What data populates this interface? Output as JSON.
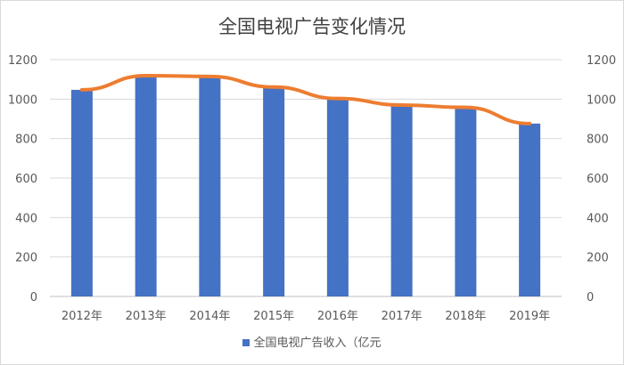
{
  "chart_data": {
    "type": "bar",
    "title": "全国电视广告变化情况",
    "categories": [
      "2012年",
      "2013年",
      "2014年",
      "2015年",
      "2016年",
      "2017年",
      "2018年",
      "2019年"
    ],
    "series": [
      {
        "name": "全国电视广告收入（亿元",
        "type": "bar",
        "values": [
          1047,
          1119,
          1115,
          1061,
          1003,
          970,
          958,
          876
        ],
        "color": "#4472c4"
      },
      {
        "name": "",
        "type": "line",
        "values": [
          1047,
          1119,
          1115,
          1061,
          1003,
          970,
          958,
          876
        ],
        "color": "#ed7d31"
      }
    ],
    "ylim": [
      0,
      1200
    ],
    "yticks": [
      "0",
      "200",
      "400",
      "600",
      "800",
      "1000",
      "1200"
    ],
    "y2ticks": [
      "0",
      "200",
      "400",
      "600",
      "800",
      "1000",
      "1200"
    ],
    "grid": true,
    "legend": "bottom"
  }
}
